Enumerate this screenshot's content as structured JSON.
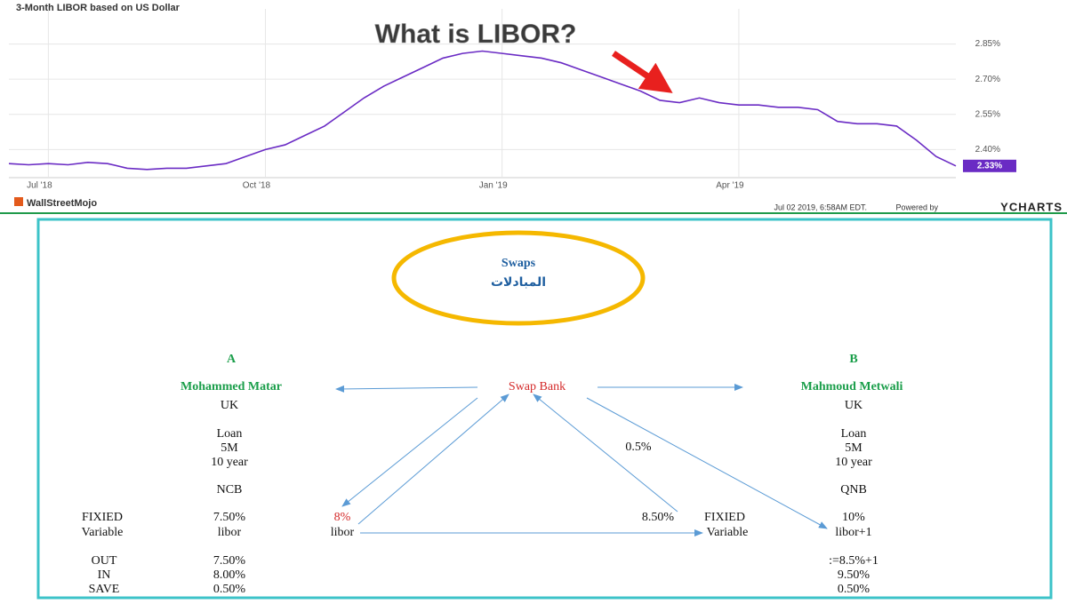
{
  "chart_data": {
    "type": "line",
    "title": "3-Month LIBOR based on US Dollar",
    "annotation": "What is LIBOR?",
    "categories": [
      null,
      null,
      "Jul '18",
      null,
      null,
      null,
      null,
      null,
      null,
      null,
      null,
      null,
      null,
      "Oct '18",
      null,
      null,
      null,
      null,
      null,
      null,
      null,
      null,
      null,
      null,
      null,
      "Jan '19",
      null,
      null,
      null,
      null,
      null,
      null,
      null,
      null,
      null,
      null,
      null,
      "Apr '19",
      null,
      null,
      null,
      null,
      null,
      null,
      null,
      null,
      null,
      null,
      null
    ],
    "values": [
      2.34,
      2.335,
      2.34,
      2.335,
      2.345,
      2.34,
      2.32,
      2.315,
      2.32,
      2.32,
      2.33,
      2.34,
      2.37,
      2.4,
      2.42,
      2.46,
      2.5,
      2.56,
      2.62,
      2.67,
      2.71,
      2.75,
      2.79,
      2.81,
      2.82,
      2.81,
      2.8,
      2.79,
      2.77,
      2.74,
      2.71,
      2.68,
      2.65,
      2.61,
      2.6,
      2.62,
      2.6,
      2.59,
      2.59,
      2.58,
      2.58,
      2.57,
      2.52,
      2.51,
      2.51,
      2.5,
      2.44,
      2.37,
      2.33
    ],
    "value_labels": [
      null,
      null,
      null,
      null,
      null,
      null,
      null,
      null,
      null,
      null,
      null,
      null,
      null,
      null,
      null,
      null,
      null,
      null,
      null,
      null,
      null,
      null,
      null,
      null,
      null,
      null,
      null,
      null,
      null,
      null,
      null,
      null,
      null,
      null,
      null,
      null,
      null,
      null,
      null,
      null,
      null,
      null,
      null,
      null,
      null,
      null,
      null,
      null,
      "2.33%"
    ],
    "color": "#6a2bc4",
    "ylim": [
      2.28,
      3.0
    ],
    "yticks": [
      {
        "value": 2.4,
        "label": "2.40%"
      },
      {
        "value": 2.55,
        "label": "2.55%"
      },
      {
        "value": 2.7,
        "label": "2.70%"
      },
      {
        "value": 2.85,
        "label": "2.85%"
      }
    ],
    "grid": true
  },
  "chart_footer": {
    "brand": "WallStreetMojo",
    "timestamp": "Jul 02 2019, 6:58AM EDT.",
    "powered": "Powered by",
    "provider": "YCHARTS"
  },
  "diagram": {
    "center": {
      "title": "Swaps",
      "subtitle": "المبادلات"
    },
    "party_a": {
      "letter": "A",
      "name": "Mohammed Matar",
      "country": "UK",
      "loan": [
        "Loan",
        "5M",
        "10 year"
      ],
      "bank": "NCB",
      "fixed_label": "FIXIED",
      "fixed_rate": "7.50%",
      "variable_label": "Variable",
      "variable_rate": "libor",
      "pays_fixed": "8%",
      "receives": "libor",
      "out_label": "OUT",
      "out": "7.50%",
      "in_label": "IN",
      "in": "8.00%",
      "save_label": "SAVE",
      "save": "0.50%"
    },
    "swap_bank": "Swap Bank",
    "spread": "0.5%",
    "party_b": {
      "letter": "B",
      "name": "Mahmoud Metwali",
      "country": "UK",
      "loan": [
        "Loan",
        "5M",
        "10 year"
      ],
      "bank": "QNB",
      "bank_fixed": "8.50%",
      "fixed_label": "FIXIED",
      "fixed_rate": "10%",
      "variable_label": "Variable",
      "variable_rate": "libor+1",
      "out": ":=8.5%+1",
      "in": "9.50%",
      "save": "0.50%"
    }
  }
}
